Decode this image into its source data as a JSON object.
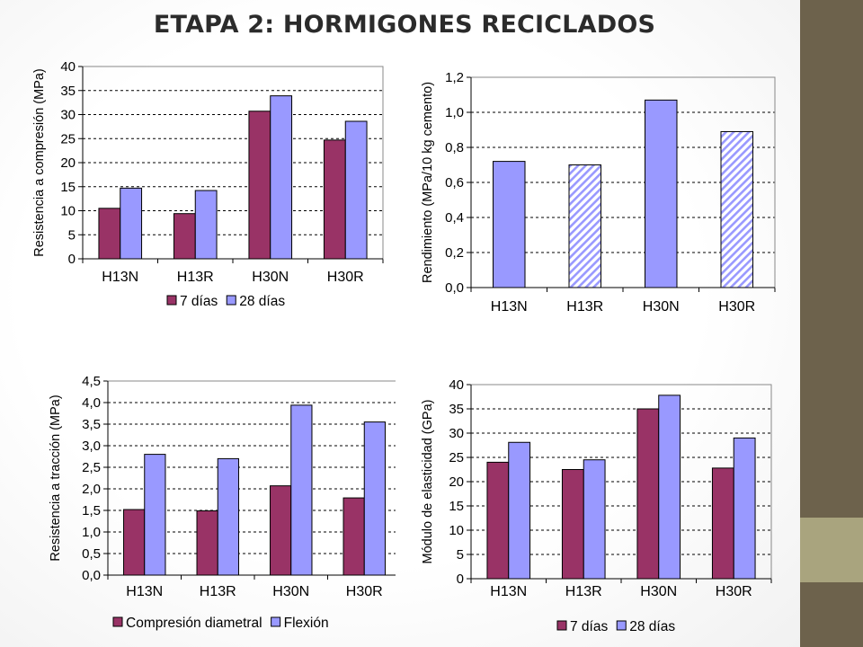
{
  "title": "ETAPA 2: HORMIGONES RECICLADOS",
  "colors": {
    "series_a": "#993366",
    "series_b": "#9999ff",
    "grid": "#000000",
    "band": "#6d624c",
    "band_light": "#a9a47e"
  },
  "chart_data": [
    {
      "id": "compresion",
      "type": "bar",
      "categories": [
        "H13N",
        "H13R",
        "H30N",
        "H30R"
      ],
      "series": [
        {
          "name": "7 días",
          "values": [
            10.5,
            9.4,
            30.7,
            24.7
          ]
        },
        {
          "name": "28 días",
          "values": [
            14.7,
            14.2,
            33.9,
            28.6
          ]
        }
      ],
      "ylabel": "Resistencia a compresión (MPa)",
      "ylim": [
        0,
        40
      ],
      "yticks": [
        "0",
        "5",
        "10",
        "15",
        "20",
        "25",
        "30",
        "35",
        "40"
      ],
      "grid": true,
      "legend": "bottom"
    },
    {
      "id": "rendimiento",
      "type": "bar",
      "categories": [
        "H13N",
        "H13R",
        "H30N",
        "H30R"
      ],
      "series": [
        {
          "values": [
            0.72,
            0.7,
            1.07,
            0.89
          ],
          "pattern": [
            "solid",
            "hatched",
            "solid",
            "hatched"
          ]
        }
      ],
      "ylabel": "Rendimiento (MPa/10 kg cemento)",
      "ylim": [
        0,
        1.2
      ],
      "yticks": [
        "0,0",
        "0,2",
        "0,4",
        "0,6",
        "0,8",
        "1,0",
        "1,2"
      ],
      "grid": true,
      "legend": "none"
    },
    {
      "id": "traccion",
      "type": "bar",
      "categories": [
        "H13N",
        "H13R",
        "H30N",
        "H30R"
      ],
      "series": [
        {
          "name": "Compresión diametral",
          "values": [
            1.52,
            1.49,
            2.07,
            1.79
          ]
        },
        {
          "name": "Flexión",
          "values": [
            2.8,
            2.7,
            3.94,
            3.55
          ]
        }
      ],
      "ylabel": "Resistencia a tracción (MPa)",
      "ylim": [
        0,
        4.5
      ],
      "yticks": [
        "0,0",
        "0,5",
        "1,0",
        "1,5",
        "2,0",
        "2,5",
        "3,0",
        "3,5",
        "4,0",
        "4,5"
      ],
      "grid": true,
      "legend": "bottom"
    },
    {
      "id": "elasticidad",
      "type": "bar",
      "categories": [
        "H13N",
        "H13R",
        "H30N",
        "H30R"
      ],
      "series": [
        {
          "name": "7 días",
          "values": [
            24.0,
            22.5,
            35.0,
            22.8
          ]
        },
        {
          "name": "28 días",
          "values": [
            28.1,
            24.5,
            37.8,
            29.0
          ]
        }
      ],
      "ylabel": "Módulo de elasticidad (GPa)",
      "ylim": [
        0,
        40
      ],
      "yticks": [
        "0",
        "5",
        "10",
        "15",
        "20",
        "25",
        "30",
        "35",
        "40"
      ],
      "grid": true,
      "legend": "bottom"
    }
  ]
}
